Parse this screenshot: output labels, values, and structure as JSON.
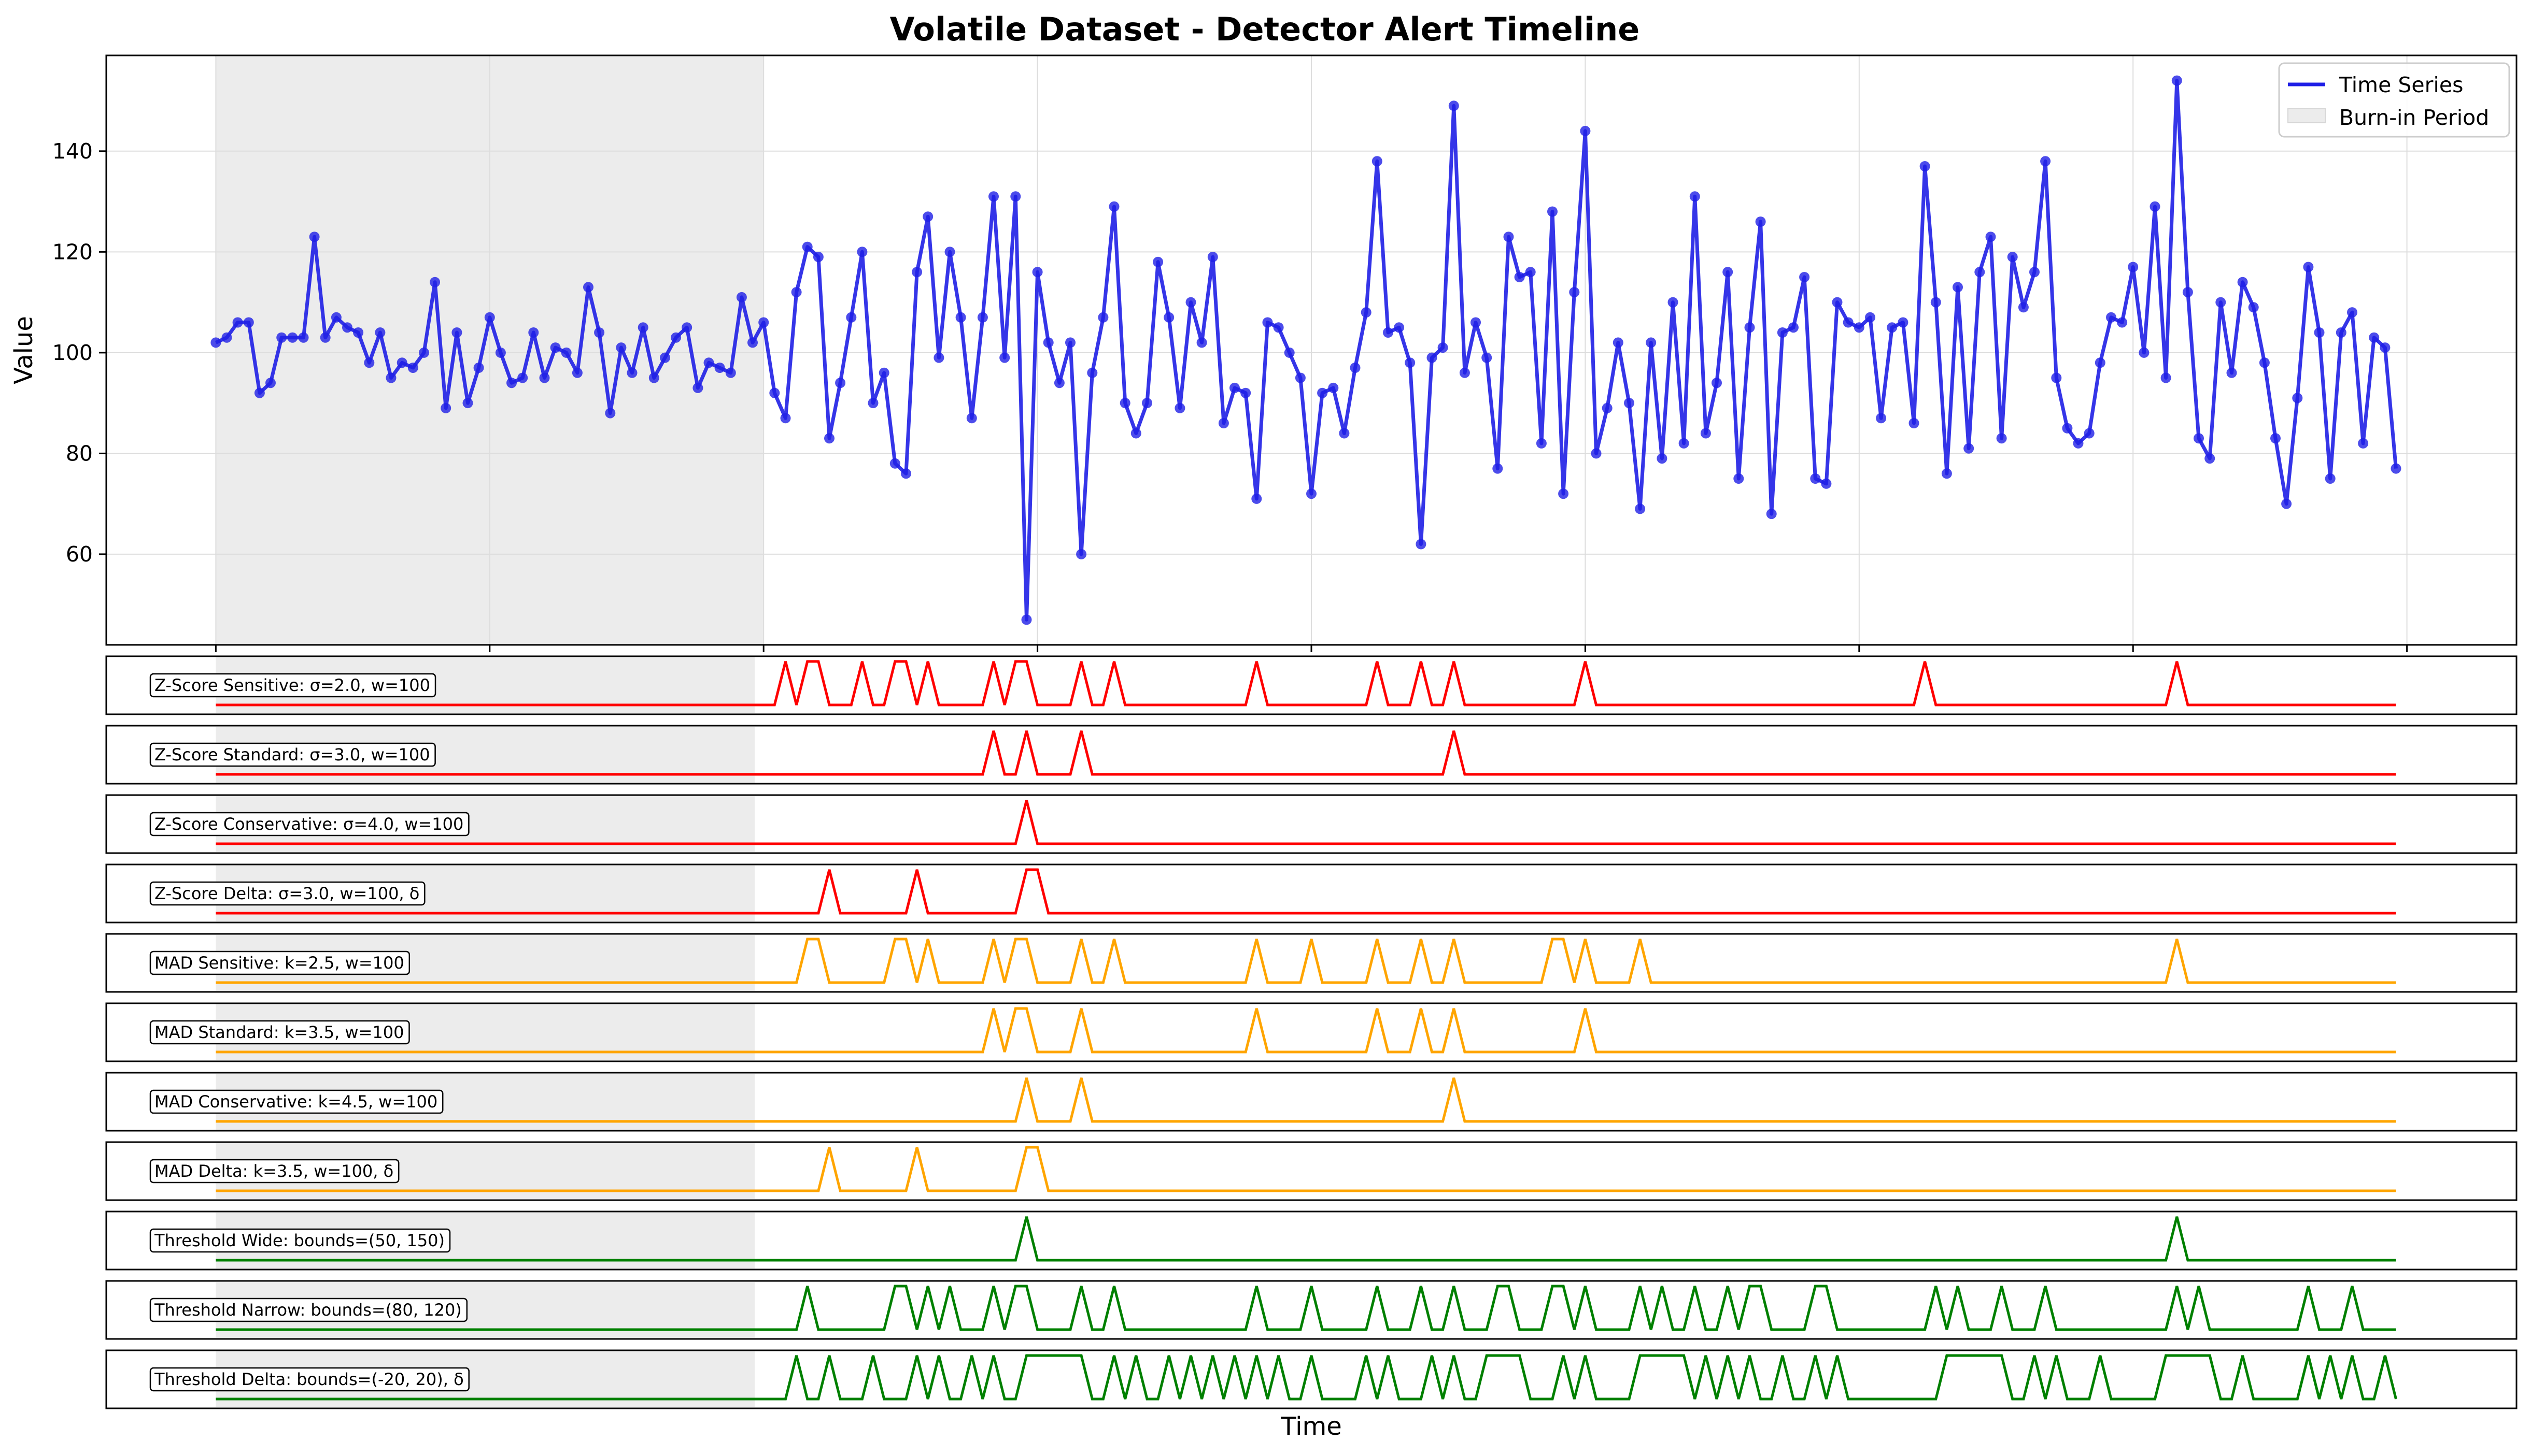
{
  "chart_data": {
    "type": "line",
    "title": "Volatile Dataset - Detector Alert Timeline",
    "xlabel": "Time",
    "ylabel": "Value",
    "grid": true,
    "legend": "top-right",
    "legend_entries": [
      "Time Series",
      "Burn-in Period"
    ],
    "burn_in_range": [
      0,
      50
    ],
    "xlim": [
      -10,
      210
    ],
    "ylim": [
      42,
      159
    ],
    "y_ticks": [
      "60",
      "80",
      "100",
      "120",
      "140"
    ],
    "x_tick_values": [
      0,
      25,
      50,
      75,
      100,
      125,
      150,
      175,
      200
    ],
    "colors": {
      "series": "#1f1fe6",
      "burn_in": "#ececec",
      "zscore": "#ff0000",
      "mad": "#ffa500",
      "threshold": "#008000",
      "grid": "#dddddd"
    },
    "series": [
      {
        "name": "Time Series",
        "x_start": 0,
        "values": [
          102,
          103,
          106,
          106,
          92,
          94,
          103,
          103,
          103,
          123,
          103,
          107,
          105,
          104,
          98,
          104,
          95,
          98,
          97,
          100,
          114,
          89,
          104,
          90,
          97,
          107,
          100,
          94,
          95,
          104,
          95,
          101,
          100,
          96,
          113,
          104,
          88,
          101,
          96,
          105,
          95,
          99,
          103,
          105,
          93,
          98,
          97,
          96,
          111,
          102,
          106,
          92,
          87,
          112,
          121,
          119,
          83,
          94,
          107,
          120,
          90,
          96,
          78,
          76,
          116,
          127,
          99,
          120,
          107,
          87,
          107,
          131,
          99,
          131,
          47,
          116,
          102,
          94,
          102,
          60,
          96,
          107,
          129,
          90,
          84,
          90,
          118,
          107,
          89,
          110,
          102,
          119,
          86,
          93,
          92,
          71,
          106,
          105,
          100,
          95,
          72,
          92,
          93,
          84,
          97,
          108,
          138,
          104,
          105,
          98,
          62,
          99,
          101,
          149,
          96,
          106,
          99,
          77,
          123,
          115,
          116,
          82,
          128,
          72,
          112,
          144,
          80,
          89,
          102,
          90,
          69,
          102,
          79,
          110,
          82,
          131,
          84,
          94,
          116,
          75,
          105,
          126,
          68,
          104,
          105,
          115,
          75,
          74,
          110,
          106,
          105,
          107,
          87,
          105,
          106,
          86,
          137,
          110,
          76,
          113,
          81,
          116,
          123,
          83,
          119,
          109,
          116,
          138,
          95,
          85,
          82,
          84,
          98,
          107,
          106,
          117,
          100,
          129,
          95,
          154,
          112,
          83,
          79,
          110,
          96,
          114,
          109,
          98,
          83,
          70,
          91,
          117,
          104,
          75,
          104,
          108,
          82,
          103,
          101,
          77
        ]
      }
    ],
    "detectors": [
      {
        "label": "Z-Score Sensitive: σ=2.0, w=100",
        "family": "zscore",
        "alerts": [
          [
            52,
            52
          ],
          [
            54,
            55
          ],
          [
            59,
            59
          ],
          [
            62,
            62
          ],
          [
            63,
            63
          ],
          [
            65,
            65
          ],
          [
            71,
            71
          ],
          [
            73,
            73
          ],
          [
            74,
            74
          ],
          [
            79,
            79
          ],
          [
            82,
            82
          ],
          [
            95,
            95
          ],
          [
            106,
            106
          ],
          [
            110,
            110
          ],
          [
            113,
            113
          ],
          [
            125,
            125
          ],
          [
            156,
            156
          ],
          [
            179,
            179
          ]
        ]
      },
      {
        "label": "Z-Score Standard: σ=3.0, w=100",
        "family": "zscore",
        "alerts": [
          [
            71,
            71
          ],
          [
            74,
            74
          ],
          [
            79,
            79
          ],
          [
            113,
            113
          ]
        ]
      },
      {
        "label": "Z-Score Conservative: σ=4.0, w=100",
        "family": "zscore",
        "alerts": [
          [
            74,
            74
          ]
        ]
      },
      {
        "label": "Z-Score Delta: σ=3.0, w=100, δ",
        "family": "zscore",
        "alerts": [
          [
            56,
            56
          ],
          [
            64,
            64
          ],
          [
            74,
            75
          ]
        ]
      },
      {
        "label": "MAD Sensitive: k=2.5, w=100",
        "family": "mad",
        "alerts": [
          [
            54,
            55
          ],
          [
            62,
            63
          ],
          [
            65,
            65
          ],
          [
            71,
            71
          ],
          [
            73,
            74
          ],
          [
            79,
            79
          ],
          [
            82,
            82
          ],
          [
            95,
            95
          ],
          [
            100,
            100
          ],
          [
            106,
            106
          ],
          [
            110,
            110
          ],
          [
            113,
            113
          ],
          [
            122,
            123
          ],
          [
            125,
            125
          ],
          [
            130,
            130
          ],
          [
            179,
            179
          ]
        ]
      },
      {
        "label": "MAD Standard: k=3.5, w=100",
        "family": "mad",
        "alerts": [
          [
            71,
            71
          ],
          [
            73,
            74
          ],
          [
            79,
            79
          ],
          [
            95,
            95
          ],
          [
            106,
            106
          ],
          [
            110,
            110
          ],
          [
            113,
            113
          ],
          [
            125,
            125
          ]
        ]
      },
      {
        "label": "MAD Conservative: k=4.5, w=100",
        "family": "mad",
        "alerts": [
          [
            74,
            74
          ],
          [
            79,
            79
          ],
          [
            113,
            113
          ]
        ]
      },
      {
        "label": "MAD Delta: k=3.5, w=100, δ",
        "family": "mad",
        "alerts": [
          [
            56,
            56
          ],
          [
            64,
            64
          ],
          [
            74,
            75
          ]
        ]
      },
      {
        "label": "Threshold Wide: bounds=(50, 150)",
        "family": "threshold",
        "alerts": [
          [
            74,
            74
          ],
          [
            179,
            179
          ]
        ]
      },
      {
        "label": "Threshold Narrow: bounds=(80, 120)",
        "family": "threshold",
        "alerts": [
          [
            54,
            54
          ],
          [
            62,
            63
          ],
          [
            65,
            65
          ],
          [
            67,
            67
          ],
          [
            71,
            71
          ],
          [
            73,
            74
          ],
          [
            79,
            79
          ],
          [
            82,
            82
          ],
          [
            95,
            95
          ],
          [
            100,
            100
          ],
          [
            106,
            106
          ],
          [
            110,
            110
          ],
          [
            113,
            113
          ],
          [
            117,
            118
          ],
          [
            122,
            123
          ],
          [
            125,
            125
          ],
          [
            130,
            130
          ],
          [
            132,
            132
          ],
          [
            135,
            135
          ],
          [
            138,
            138
          ],
          [
            140,
            141
          ],
          [
            146,
            147
          ],
          [
            157,
            157
          ],
          [
            159,
            159
          ],
          [
            163,
            163
          ],
          [
            167,
            167
          ],
          [
            179,
            179
          ],
          [
            181,
            181
          ],
          [
            191,
            191
          ],
          [
            195,
            195
          ],
          [
            200,
            200
          ]
        ]
      },
      {
        "label": "Threshold Delta: bounds=(-20, 20), δ",
        "family": "threshold",
        "alerts": [
          [
            53,
            53
          ],
          [
            56,
            56
          ],
          [
            60,
            60
          ],
          [
            64,
            64
          ],
          [
            66,
            66
          ],
          [
            69,
            69
          ],
          [
            71,
            71
          ],
          [
            74,
            79
          ],
          [
            82,
            82
          ],
          [
            84,
            84
          ],
          [
            87,
            87
          ],
          [
            89,
            89
          ],
          [
            91,
            91
          ],
          [
            93,
            93
          ],
          [
            95,
            95
          ],
          [
            97,
            97
          ],
          [
            100,
            100
          ],
          [
            105,
            105
          ],
          [
            107,
            107
          ],
          [
            111,
            111
          ],
          [
            113,
            113
          ],
          [
            116,
            119
          ],
          [
            123,
            123
          ],
          [
            125,
            125
          ],
          [
            130,
            134
          ],
          [
            136,
            136
          ],
          [
            138,
            138
          ],
          [
            140,
            140
          ],
          [
            143,
            143
          ],
          [
            146,
            146
          ],
          [
            148,
            148
          ],
          [
            158,
            163
          ],
          [
            166,
            166
          ],
          [
            168,
            168
          ],
          [
            172,
            172
          ],
          [
            178,
            182
          ],
          [
            185,
            185
          ],
          [
            191,
            191
          ],
          [
            193,
            193
          ],
          [
            195,
            195
          ],
          [
            198,
            198
          ],
          [
            200,
            200
          ]
        ]
      }
    ]
  }
}
